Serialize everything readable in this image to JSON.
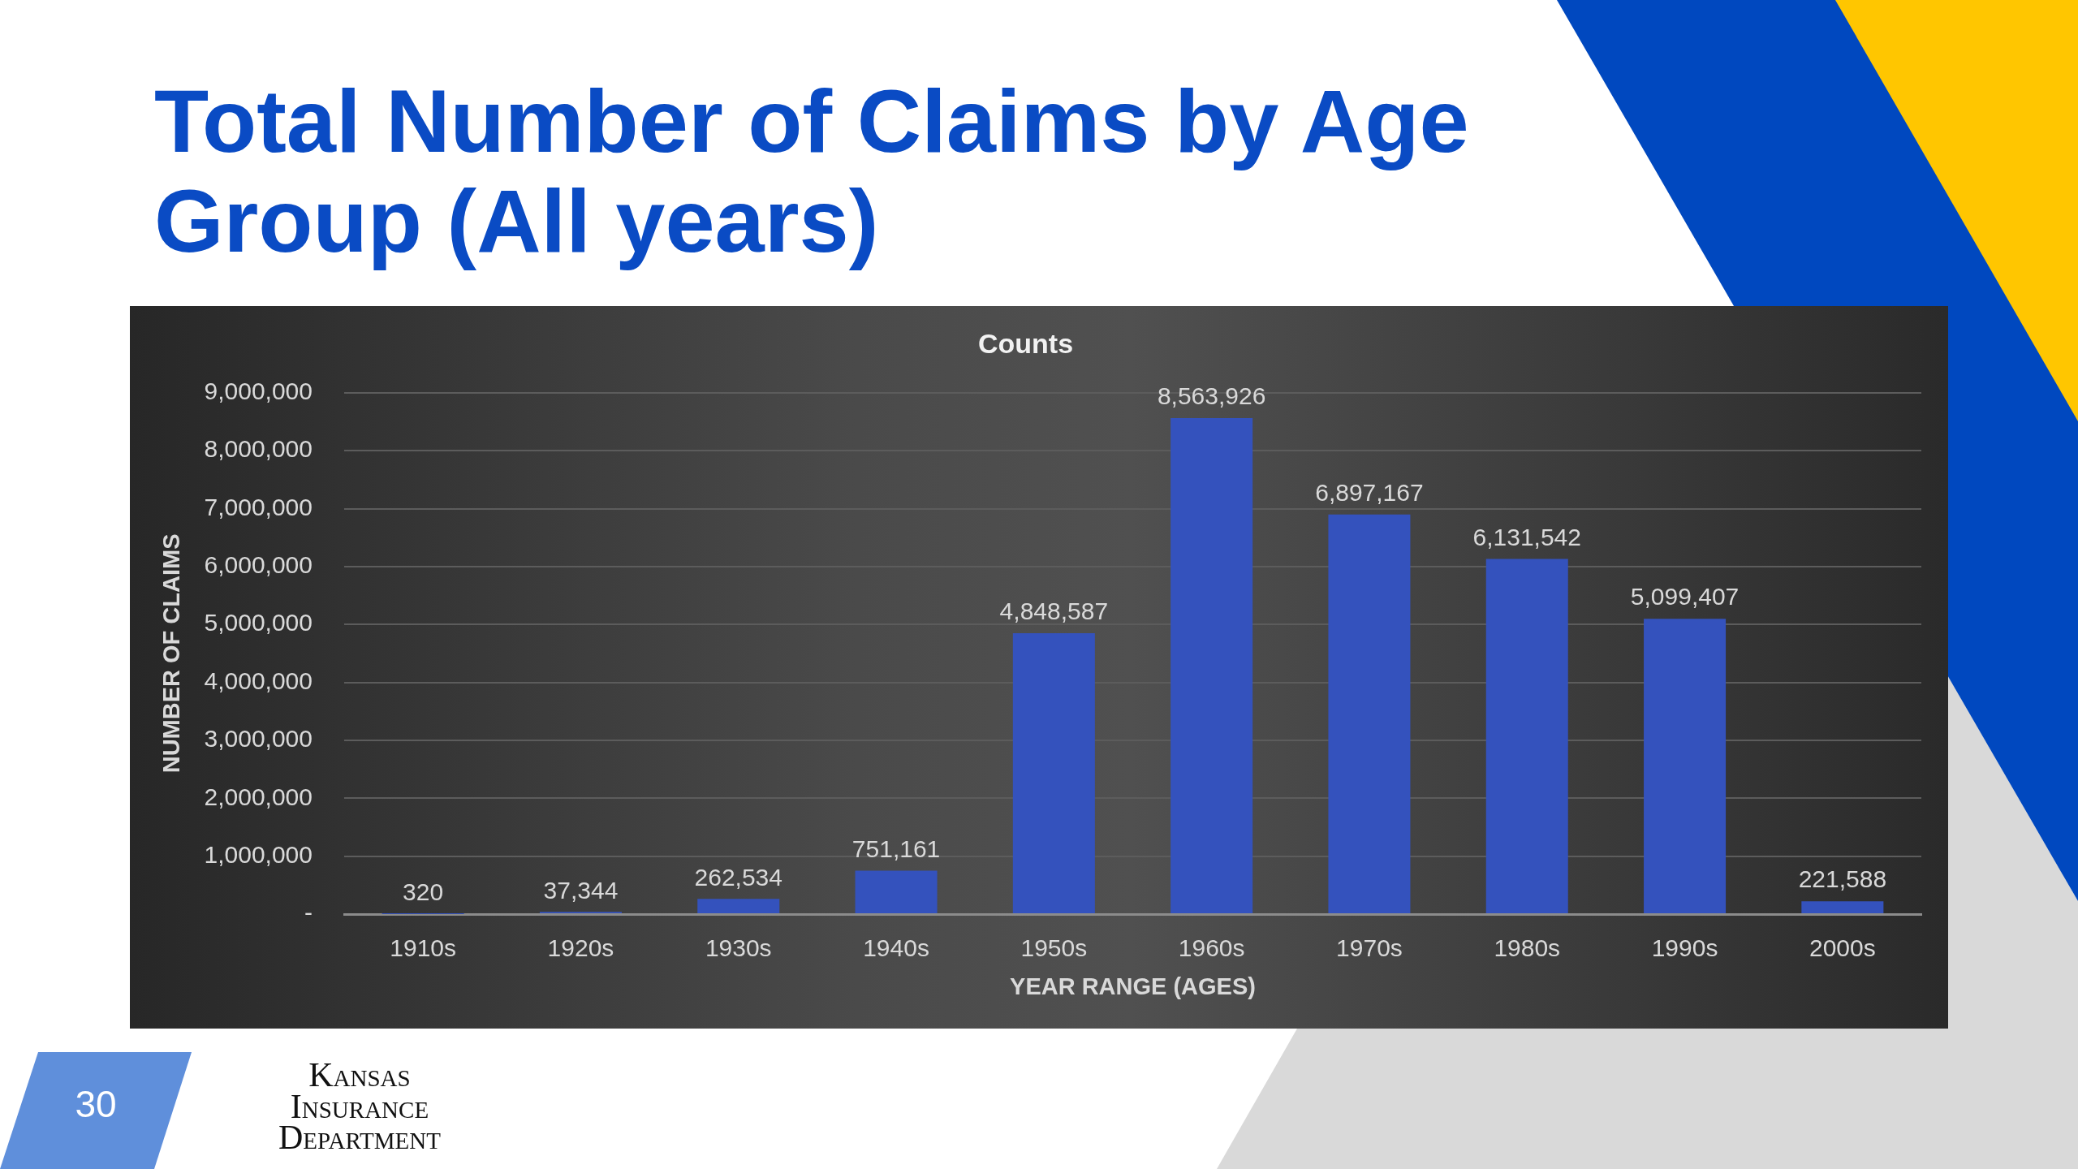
{
  "chart_data": {
    "type": "bar",
    "title": "Total Number of Claims by Age Group (All years)",
    "subtitle": "Counts",
    "xlabel": "YEAR RANGE (AGES)",
    "ylabel": "NUMBER OF CLAIMS",
    "categories": [
      "1910s",
      "1920s",
      "1930s",
      "1940s",
      "1950s",
      "1960s",
      "1970s",
      "1980s",
      "1990s",
      "2000s"
    ],
    "values": [
      320,
      37344,
      262534,
      751161,
      4848587,
      8563926,
      6897167,
      6131542,
      5099407,
      221588
    ],
    "value_labels": [
      "320",
      "37,344",
      "262,534",
      "751,161",
      "4,848,587",
      "8,563,926",
      "6,897,167",
      "6,131,542",
      "5,099,407",
      "221,588"
    ],
    "color": "#3452bd",
    "ylim": [
      0,
      9000000
    ],
    "yticks": [
      {
        "value": 0,
        "label": "-"
      },
      {
        "value": 1000000,
        "label": "1,000,000"
      },
      {
        "value": 2000000,
        "label": "2,000,000"
      },
      {
        "value": 3000000,
        "label": "3,000,000"
      },
      {
        "value": 4000000,
        "label": "4,000,000"
      },
      {
        "value": 5000000,
        "label": "5,000,000"
      },
      {
        "value": 6000000,
        "label": "6,000,000"
      },
      {
        "value": 7000000,
        "label": "7,000,000"
      },
      {
        "value": 8000000,
        "label": "8,000,000"
      },
      {
        "value": 9000000,
        "label": "9,000,000"
      }
    ],
    "grid": "y",
    "annotations": [
      "30",
      "Kansas Insurance Department"
    ]
  }
}
